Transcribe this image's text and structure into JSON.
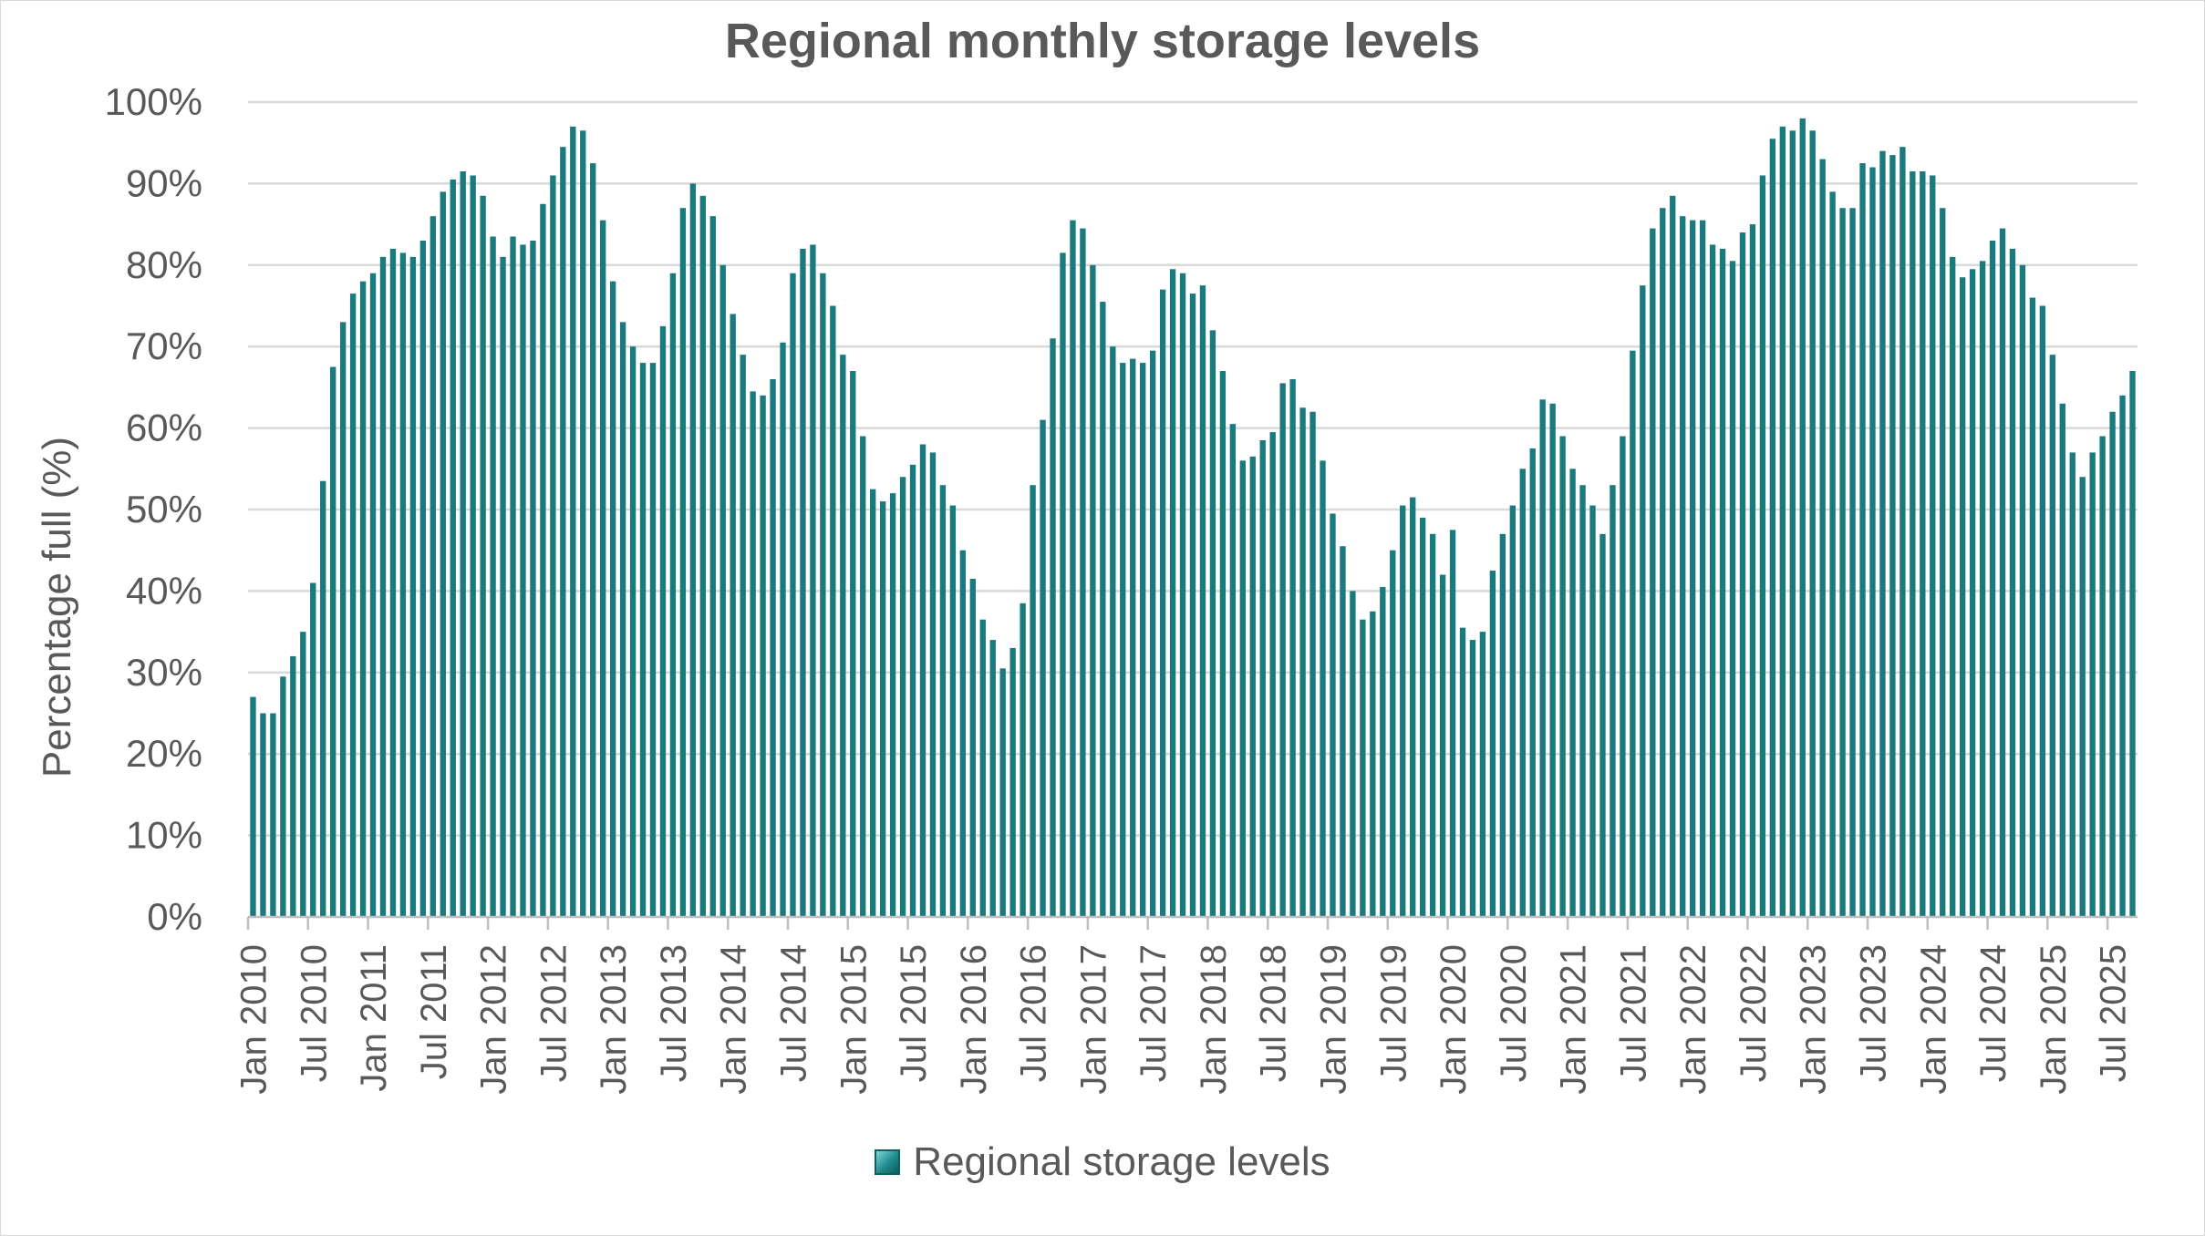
{
  "chart_data": {
    "type": "bar",
    "title": "Regional monthly storage levels",
    "xlabel": "",
    "ylabel": "Percentage full (%)",
    "ylim": [
      0,
      100
    ],
    "y_ticks": [
      "0%",
      "10%",
      "20%",
      "30%",
      "40%",
      "50%",
      "60%",
      "70%",
      "80%",
      "90%",
      "100%"
    ],
    "x_tick_labels": [
      "Jan 2010",
      "Jul 2010",
      "Jan 2011",
      "Jul 2011",
      "Jan 2012",
      "Jul 2012",
      "Jan 2013",
      "Jul 2013",
      "Jan 2014",
      "Jul 2014",
      "Jan 2015",
      "Jul 2015",
      "Jan 2016",
      "Jul 2016",
      "Jan 2017",
      "Jul 2017",
      "Jan 2018",
      "Jul 2018",
      "Jan 2019",
      "Jul 2019",
      "Jan 2020",
      "Jul 2020",
      "Jan 2021",
      "Jul 2021",
      "Jan 2022",
      "Jul 2022",
      "Jan 2023",
      "Jul 2023",
      "Jan 2024",
      "Jul 2024",
      "Jan 2025",
      "Jul 2025"
    ],
    "x_start": "2010-01",
    "x_end": "2025-09",
    "grid": true,
    "legend_position": "bottom",
    "bar_color": "#1b7a7e",
    "series": [
      {
        "name": "Regional storage levels",
        "values": [
          27,
          25,
          25,
          29.5,
          32,
          35,
          41,
          53.5,
          67.5,
          73,
          76.5,
          78,
          79,
          81,
          82,
          81.5,
          81,
          83,
          86,
          89,
          90.5,
          91.5,
          91,
          88.5,
          83.5,
          81,
          83.5,
          82.5,
          83,
          87.5,
          91,
          94.5,
          97,
          96.5,
          92.5,
          85.5,
          78,
          73,
          70,
          68,
          68,
          72.5,
          79,
          87,
          90,
          88.5,
          86,
          80,
          74,
          69,
          64.5,
          64,
          66,
          70.5,
          79,
          82,
          82.5,
          79,
          75,
          69,
          67,
          59,
          52.5,
          51,
          52,
          54,
          55.5,
          58,
          57,
          53,
          50.5,
          45,
          41.5,
          36.5,
          34,
          30.5,
          33,
          38.5,
          53,
          61,
          71,
          81.5,
          85.5,
          84.5,
          80,
          75.5,
          70,
          68,
          68.5,
          68,
          69.5,
          77,
          79.5,
          79,
          76.5,
          77.5,
          72,
          67,
          60.5,
          56,
          56.5,
          58.5,
          59.5,
          65.5,
          66,
          62.5,
          62,
          56,
          49.5,
          45.5,
          40,
          36.5,
          37.5,
          40.5,
          45,
          50.5,
          51.5,
          49,
          47,
          42,
          47.5,
          35.5,
          34,
          35,
          42.5,
          47,
          50.5,
          55,
          57.5,
          63.5,
          63,
          59,
          55,
          53,
          50.5,
          47,
          53,
          59,
          69.5,
          77.5,
          84.5,
          87,
          88.5,
          86,
          85.5,
          85.5,
          82.5,
          82,
          80.5,
          84,
          85,
          91,
          95.5,
          97,
          96.5,
          98,
          96.5,
          93,
          89,
          87,
          87,
          92.5,
          92,
          94,
          93.5,
          94.5,
          91.5,
          91.5,
          91,
          87,
          81,
          78.5,
          79.5,
          80.5,
          83,
          84.5,
          82,
          80,
          76,
          75,
          69,
          63,
          57,
          54,
          57,
          59,
          62,
          64,
          67
        ]
      }
    ]
  }
}
